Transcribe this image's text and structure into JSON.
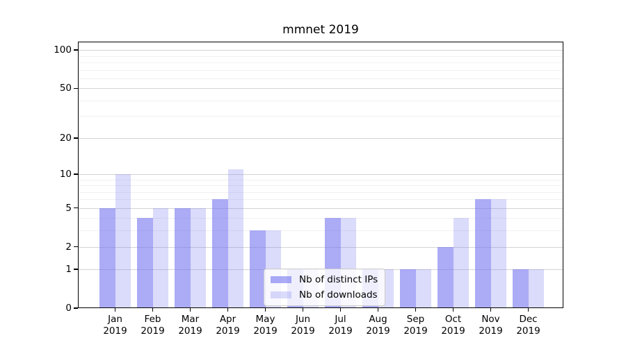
{
  "figure": {
    "title": "mmnet 2019"
  },
  "chart_data": {
    "type": "bar",
    "title": "mmnet 2019",
    "categories": [
      "Jan",
      "Feb",
      "Mar",
      "Apr",
      "May",
      "Jun",
      "Jul",
      "Aug",
      "Sep",
      "Oct",
      "Nov",
      "Dec"
    ],
    "x_year_label": "2019",
    "series": [
      {
        "name": "Nb of distinct IPs",
        "color": "rgba(110,110,240,0.58)",
        "values": [
          5,
          4,
          5,
          6,
          3,
          1,
          4,
          1,
          1,
          2,
          6,
          1
        ]
      },
      {
        "name": "Nb of downloads",
        "color": "rgba(110,110,240,0.25)",
        "values": [
          10,
          5,
          5,
          11,
          3,
          1,
          4,
          1,
          1,
          4,
          6,
          1
        ]
      }
    ],
    "y_axis": {
      "scale": "log1p",
      "major_ticks": [
        0,
        1,
        2,
        5,
        10,
        20,
        50,
        100
      ],
      "minor_gridlines": [
        3,
        4,
        6,
        7,
        8,
        9,
        30,
        40,
        60,
        70,
        80,
        90
      ],
      "ylim": [
        0,
        115
      ]
    },
    "grid": "on",
    "legend_position": "lower center",
    "colors": {
      "bar_base": "#6e6ef0",
      "grid_major": "#d4d4d4",
      "grid_minor": "#f0f0f0",
      "spine": "#000000",
      "background": "#ffffff"
    }
  }
}
